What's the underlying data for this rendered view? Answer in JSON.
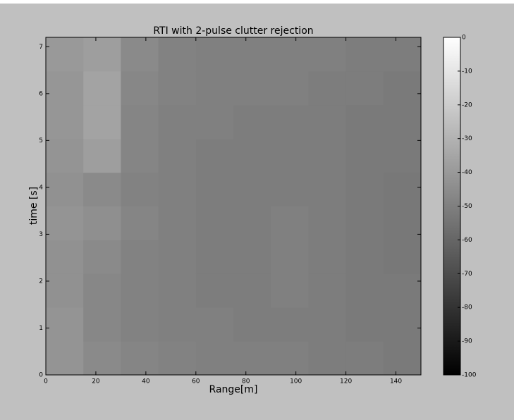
{
  "chart_data": {
    "type": "heatmap",
    "title": "RTI with 2-pulse clutter rejection",
    "xlabel": "Range[m]",
    "ylabel": "time [s]",
    "xlim": [
      0,
      150
    ],
    "xticks": [
      0,
      20,
      40,
      60,
      80,
      100,
      120,
      140
    ],
    "ylim": [
      0,
      7.2
    ],
    "yticks": [
      0,
      1,
      2,
      3,
      4,
      5,
      6,
      7
    ],
    "colormap": "gray",
    "z": [
      [
        -42,
        -46,
        -48,
        -49,
        -50,
        -50,
        -50,
        -51,
        -51,
        -52
      ],
      [
        -42,
        -47,
        -49,
        -50,
        -50,
        -51,
        -51,
        -51,
        -52,
        -52
      ],
      [
        -43,
        -47,
        -49,
        -50,
        -51,
        -51,
        -50,
        -51,
        -52,
        -52
      ],
      [
        -43,
        -46,
        -49,
        -50,
        -51,
        -51,
        -50,
        -51,
        -52,
        -53
      ],
      [
        -42,
        -44,
        -48,
        -50,
        -51,
        -51,
        -50,
        -51,
        -52,
        -53
      ],
      [
        -43,
        -46,
        -49,
        -50,
        -51,
        -51,
        -51,
        -51,
        -52,
        -53
      ],
      [
        -42,
        -38,
        -48,
        -50,
        -51,
        -51,
        -51,
        -51,
        -52,
        -52
      ],
      [
        -41,
        -36,
        -48,
        -50,
        -50,
        -51,
        -51,
        -51,
        -52,
        -52
      ],
      [
        -41,
        -36,
        -47,
        -49,
        -50,
        -50,
        -50,
        -51,
        -51,
        -52
      ],
      [
        -40,
        -38,
        -46,
        -49,
        -50,
        -50,
        -50,
        -50,
        -51,
        -51
      ]
    ],
    "colorbar": {
      "lim": [
        -100,
        0
      ],
      "ticks": [
        0,
        -10,
        -20,
        -30,
        -40,
        -50,
        -60,
        -70,
        -80,
        -90,
        -100
      ]
    }
  }
}
